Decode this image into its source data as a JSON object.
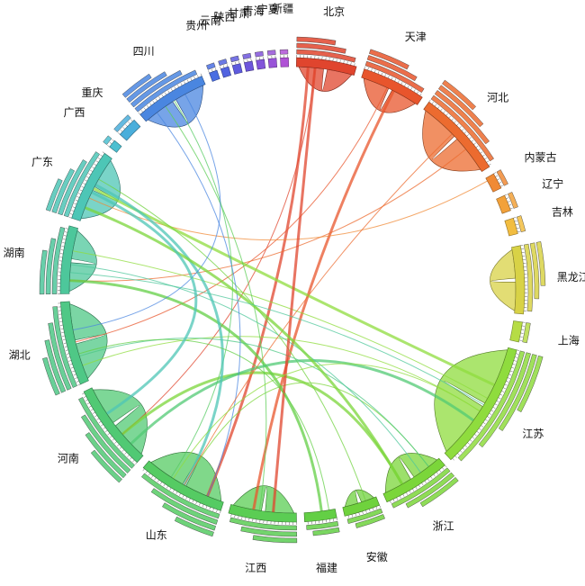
{
  "diagram": {
    "type": "chord",
    "regions": [
      {
        "label": "北京",
        "color": "#e0452e"
      },
      {
        "label": "天津",
        "color": "#e8552c"
      },
      {
        "label": "河北",
        "color": "#ec6b2f"
      },
      {
        "label": "内蒙古",
        "color": "#f08a35"
      },
      {
        "label": "辽宁",
        "color": "#f2a13a"
      },
      {
        "label": "吉林",
        "color": "#f2bd40"
      },
      {
        "label": "黑龙江",
        "color": "#d8d246"
      },
      {
        "label": "上海",
        "color": "#b6dc45"
      },
      {
        "label": "江苏",
        "color": "#8fdc3e"
      },
      {
        "label": "浙江",
        "color": "#7bd63a"
      },
      {
        "label": "安徽",
        "color": "#6fd23d"
      },
      {
        "label": "福建",
        "color": "#63cf45"
      },
      {
        "label": "江西",
        "color": "#5bcd54"
      },
      {
        "label": "山东",
        "color": "#55cb63"
      },
      {
        "label": "河南",
        "color": "#51c974"
      },
      {
        "label": "湖北",
        "color": "#4fc886"
      },
      {
        "label": "湖南",
        "color": "#4dc79b"
      },
      {
        "label": "广东",
        "color": "#4dc6b6"
      },
      {
        "label": "广西",
        "color": "#4cbfd0"
      },
      {
        "label": "重庆",
        "color": "#4aaedb"
      },
      {
        "label": "四川",
        "color": "#4a86e0"
      },
      {
        "label": "贵州",
        "color": "#4a6ee2"
      },
      {
        "label": "云南",
        "color": "#5163e0"
      },
      {
        "label": "陕西",
        "color": "#5e5bde"
      },
      {
        "label": "甘肃",
        "color": "#6d56dc"
      },
      {
        "label": "青海",
        "color": "#8254da"
      },
      {
        "label": "宁夏",
        "color": "#9853d8"
      },
      {
        "label": "新疆",
        "color": "#b052d6"
      }
    ]
  }
}
